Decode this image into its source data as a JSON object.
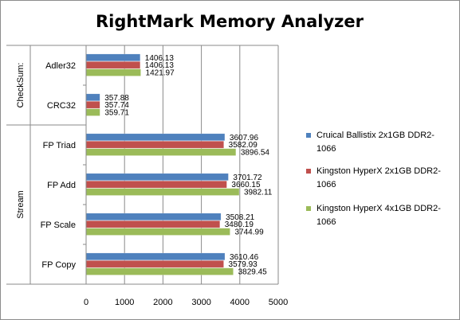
{
  "chart_data": {
    "type": "bar",
    "orientation": "horizontal",
    "title": "RightMark Memory Analyzer",
    "xlim": [
      0,
      5000
    ],
    "xticks": [
      0,
      1000,
      2000,
      3000,
      4000,
      5000
    ],
    "grid": true,
    "legend_position": "right",
    "groups": [
      {
        "name": "CheckSum:",
        "categories": [
          {
            "name": "Adler32",
            "values": [
              1406.13,
              1406.13,
              1421.97
            ]
          },
          {
            "name": "CRC32",
            "values": [
              357.88,
              357.74,
              359.71
            ]
          }
        ]
      },
      {
        "name": "Stream",
        "categories": [
          {
            "name": "FP Triad",
            "values": [
              3607.96,
              3582.09,
              3896.54
            ]
          },
          {
            "name": "FP Add",
            "values": [
              3701.72,
              3660.15,
              3982.11
            ]
          },
          {
            "name": "FP Scale",
            "values": [
              3508.21,
              3480.19,
              3744.99
            ]
          },
          {
            "name": "FP Copy",
            "values": [
              3610.46,
              3579.93,
              3829.45
            ]
          }
        ]
      }
    ],
    "series": [
      {
        "name": "Cruical Ballistix 2x1GB DDR2-1066",
        "color": "#4f81bd",
        "legend_lines": [
          "Cruical Ballistix 2x1GB DDR2-",
          "1066"
        ]
      },
      {
        "name": "Kingston HyperX 2x1GB DDR2-1066",
        "color": "#c0504d",
        "legend_lines": [
          "Kingston HyperX 2x1GB DDR2-",
          "1066"
        ]
      },
      {
        "name": "Kingston HyperX 4x1GB DDR2-1066",
        "color": "#9bbb59",
        "legend_lines": [
          "Kingston HyperX 4x1GB DDR2-",
          "1066"
        ]
      }
    ]
  }
}
